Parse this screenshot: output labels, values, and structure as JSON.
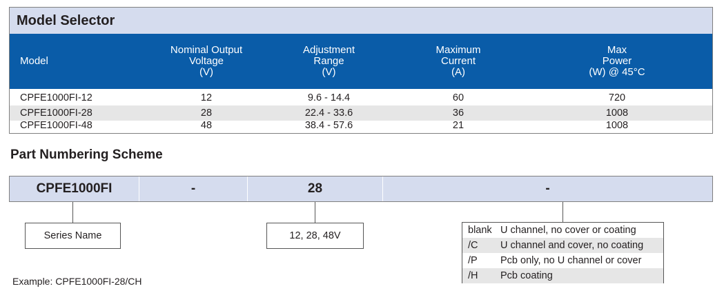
{
  "model_selector": {
    "title": "Model Selector",
    "headers": [
      [
        "Model"
      ],
      [
        "Nominal Output",
        "Voltage",
        "(V)"
      ],
      [
        "Adjustment",
        "Range",
        "(V)"
      ],
      [
        "Maximum",
        "Current",
        "(A)"
      ],
      [
        "Max",
        "Power",
        "(W) @ 45°C"
      ]
    ],
    "rows": [
      [
        "CPFE1000FI-12",
        "12",
        "9.6 - 14.4",
        "60",
        "720"
      ],
      [
        "CPFE1000FI-28",
        "28",
        "22.4 - 33.6",
        "36",
        "1008"
      ],
      [
        "CPFE1000FI-48",
        "48",
        "38.4 - 57.6",
        "21",
        "1008"
      ]
    ]
  },
  "part_numbering": {
    "title": "Part Numbering Scheme",
    "segments": [
      "CPFE1000FI",
      "-",
      "28",
      "-"
    ],
    "series_label": "Series Name",
    "voltage_label": "12, 28, 48V",
    "options": [
      [
        "blank",
        "U channel, no cover or coating"
      ],
      [
        "/C",
        "U channel and cover, no coating"
      ],
      [
        "/P",
        "Pcb only, no U channel or cover"
      ],
      [
        "/H",
        "Pcb coating"
      ]
    ],
    "example": "Example: CPFE1000FI-28/CH"
  },
  "colors": {
    "header_blue": "#0a5ca8",
    "title_band": "#d5dcee",
    "alt_row": "#e6e6e6"
  }
}
